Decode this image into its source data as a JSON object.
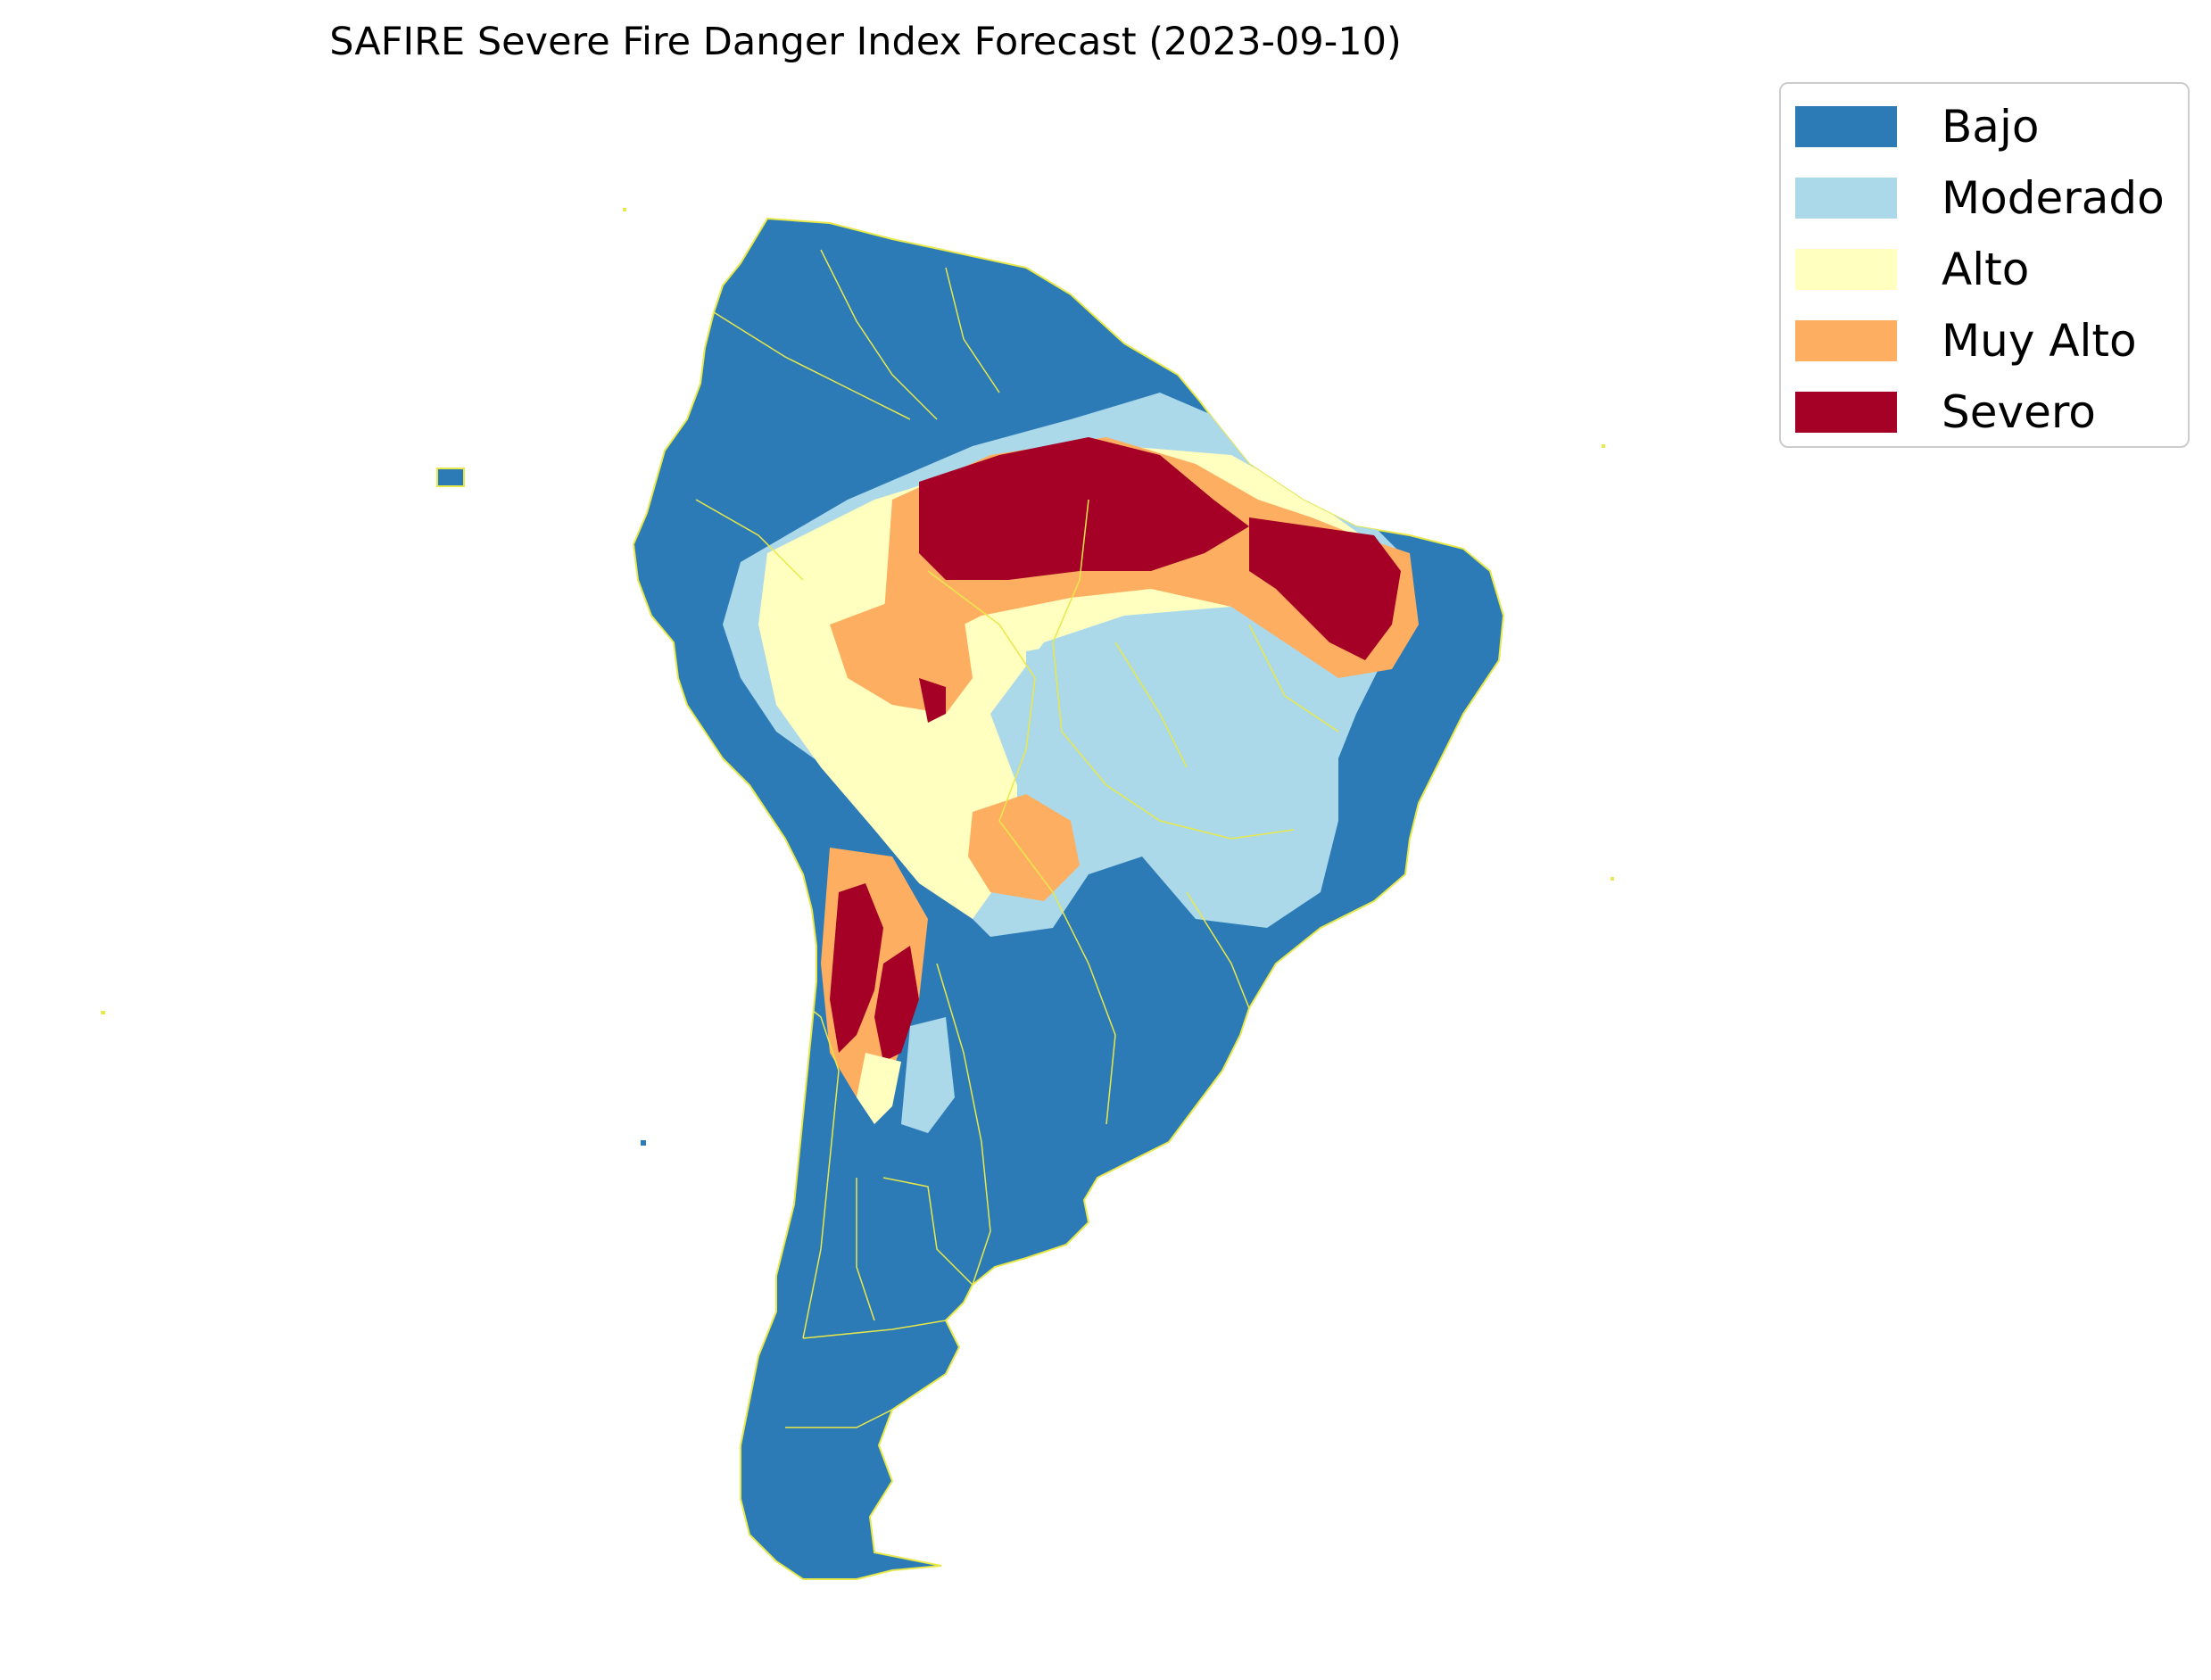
{
  "title": "SAFIRE Severe Fire Danger Index Forecast (2023-09-10)",
  "legend": {
    "items": [
      {
        "label": "Bajo",
        "color": "#2c7bb6"
      },
      {
        "label": "Moderado",
        "color": "#abd9e9"
      },
      {
        "label": "Alto",
        "color": "#ffffbf"
      },
      {
        "label": "Muy Alto",
        "color": "#fdae61"
      },
      {
        "label": "Severo",
        "color": "#a50026"
      }
    ]
  },
  "colors": {
    "border_lines": "#e8e84a",
    "background": "#ffffff"
  }
}
